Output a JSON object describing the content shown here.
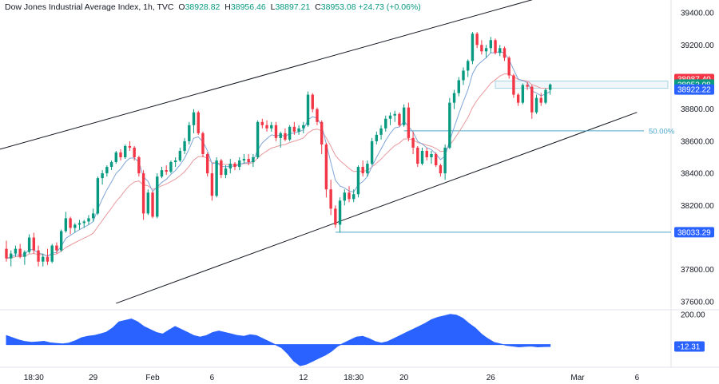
{
  "header": {
    "title": "Dow Jones Industrial Average Index, 1h, TVC",
    "o_label": "O",
    "o_value": "38928.82",
    "h_label": "H",
    "h_value": "38956.46",
    "l_label": "L",
    "l_value": "38897.21",
    "c_label": "C",
    "c_value": "38953.08",
    "change": "+24.73 (+0.06%)"
  },
  "colors": {
    "up": "#089981",
    "down": "#f23645",
    "fast_ma": "#7fa5d8",
    "slow_ma": "#e99a9e",
    "osc": "#2962ff",
    "trendline": "#131722",
    "fib": "#4aa8c9",
    "zone": "#a7d4e6"
  },
  "chart_data": {
    "type": "candlestick",
    "y_range": [
      37550,
      39460
    ],
    "y_ticks": [
      "39400.00",
      "39200.00",
      "38800.00",
      "38600.00",
      "38400.00",
      "38200.00",
      "37800.00",
      "37600.00"
    ],
    "y_tick_values": [
      39400,
      39200,
      38800,
      38600,
      38400,
      38200,
      37800,
      37600
    ],
    "x_ticks": [
      "18:30",
      "29",
      "Feb",
      "6",
      "12",
      "18:30",
      "20",
      "26",
      "Mar",
      "6"
    ],
    "x_tick_bars": [
      6,
      19,
      32,
      45,
      65,
      76,
      87,
      106,
      125,
      138
    ],
    "price_tags": [
      {
        "label": "38987.40",
        "value": 38987.4,
        "color": "#f23645"
      },
      {
        "label": "38953.08",
        "value": 38953.08,
        "color": "#089981"
      },
      {
        "label": "38922.22",
        "value": 38922.22,
        "color": "#2962ff"
      },
      {
        "label": "38033.29",
        "value": 38033.29,
        "color": "#2962ff"
      }
    ],
    "fib_label": "50.00%",
    "fib_level": 38665,
    "support_level": 38033.29,
    "channel_upper": [
      [
        0,
        38550
      ],
      [
        118,
        39505
      ]
    ],
    "channel_lower": [
      [
        24,
        37590
      ],
      [
        138,
        38780
      ]
    ],
    "zone": [
      38930,
      38975
    ],
    "osc_label": "200.00",
    "osc_value_label": "-12.31",
    "osc_range": [
      -150,
      220
    ],
    "candles": [
      [
        37930,
        37980,
        37850,
        37870
      ],
      [
        37870,
        37920,
        37820,
        37900
      ],
      [
        37900,
        37950,
        37880,
        37930
      ],
      [
        37930,
        37960,
        37870,
        37880
      ],
      [
        37880,
        37920,
        37830,
        37910
      ],
      [
        37910,
        38020,
        37900,
        38000
      ],
      [
        38000,
        38030,
        37900,
        37920
      ],
      [
        37920,
        37950,
        37820,
        37850
      ],
      [
        37850,
        37900,
        37820,
        37880
      ],
      [
        37880,
        37930,
        37830,
        37850
      ],
      [
        37850,
        37960,
        37840,
        37950
      ],
      [
        37950,
        37970,
        37900,
        37920
      ],
      [
        37920,
        38050,
        37910,
        38040
      ],
      [
        38040,
        38160,
        38030,
        38120
      ],
      [
        38120,
        38130,
        38020,
        38060
      ],
      [
        38060,
        38090,
        38030,
        38080
      ],
      [
        38080,
        38110,
        38050,
        38090
      ],
      [
        38090,
        38110,
        38060,
        38100
      ],
      [
        38100,
        38140,
        38080,
        38120
      ],
      [
        38120,
        38180,
        38100,
        38150
      ],
      [
        38150,
        38380,
        38140,
        38370
      ],
      [
        38370,
        38420,
        38330,
        38400
      ],
      [
        38400,
        38450,
        38380,
        38440
      ],
      [
        38440,
        38480,
        38420,
        38470
      ],
      [
        38470,
        38540,
        38460,
        38530
      ],
      [
        38530,
        38550,
        38480,
        38500
      ],
      [
        38500,
        38580,
        38490,
        38570
      ],
      [
        38570,
        38600,
        38540,
        38560
      ],
      [
        38560,
        38570,
        38480,
        38500
      ],
      [
        38500,
        38510,
        38380,
        38400
      ],
      [
        38400,
        38420,
        38110,
        38150
      ],
      [
        38150,
        38300,
        38140,
        38280
      ],
      [
        38280,
        38290,
        38120,
        38130
      ],
      [
        38130,
        38400,
        38120,
        38380
      ],
      [
        38380,
        38440,
        38370,
        38420
      ],
      [
        38420,
        38450,
        38390,
        38410
      ],
      [
        38410,
        38480,
        38400,
        38470
      ],
      [
        38470,
        38500,
        38440,
        38480
      ],
      [
        38480,
        38560,
        38470,
        38540
      ],
      [
        38540,
        38620,
        38520,
        38600
      ],
      [
        38600,
        38720,
        38580,
        38700
      ],
      [
        38700,
        38800,
        38650,
        38780
      ],
      [
        38780,
        38790,
        38640,
        38650
      ],
      [
        38650,
        38660,
        38500,
        38520
      ],
      [
        38520,
        38530,
        38380,
        38400
      ],
      [
        38400,
        38460,
        38230,
        38260
      ],
      [
        38260,
        38500,
        38250,
        38480
      ],
      [
        38480,
        38490,
        38370,
        38390
      ],
      [
        38390,
        38450,
        38370,
        38430
      ],
      [
        38430,
        38490,
        38400,
        38460
      ],
      [
        38460,
        38470,
        38420,
        38440
      ],
      [
        38440,
        38500,
        38420,
        38480
      ],
      [
        38480,
        38520,
        38460,
        38490
      ],
      [
        38490,
        38520,
        38450,
        38470
      ],
      [
        38470,
        38520,
        38440,
        38500
      ],
      [
        38500,
        38730,
        38490,
        38720
      ],
      [
        38720,
        38740,
        38680,
        38700
      ],
      [
        38700,
        38730,
        38660,
        38680
      ],
      [
        38680,
        38720,
        38660,
        38700
      ],
      [
        38700,
        38720,
        38600,
        38620
      ],
      [
        38620,
        38660,
        38560,
        38650
      ],
      [
        38650,
        38680,
        38600,
        38610
      ],
      [
        38610,
        38700,
        38600,
        38690
      ],
      [
        38690,
        38720,
        38640,
        38660
      ],
      [
        38660,
        38700,
        38640,
        38680
      ],
      [
        38680,
        38720,
        38650,
        38700
      ],
      [
        38700,
        38910,
        38690,
        38890
      ],
      [
        38890,
        38900,
        38780,
        38800
      ],
      [
        38800,
        38810,
        38700,
        38720
      ],
      [
        38720,
        38730,
        38520,
        38580
      ],
      [
        38580,
        38590,
        38250,
        38300
      ],
      [
        38300,
        38360,
        38140,
        38180
      ],
      [
        38180,
        38200,
        38060,
        38080
      ],
      [
        38080,
        38250,
        38030,
        38230
      ],
      [
        38230,
        38300,
        38200,
        38280
      ],
      [
        38280,
        38320,
        38220,
        38240
      ],
      [
        38240,
        38300,
        38220,
        38270
      ],
      [
        38270,
        38450,
        38250,
        38440
      ],
      [
        38440,
        38480,
        38380,
        38400
      ],
      [
        38400,
        38480,
        38380,
        38460
      ],
      [
        38460,
        38620,
        38450,
        38600
      ],
      [
        38600,
        38660,
        38580,
        38640
      ],
      [
        38640,
        38700,
        38610,
        38680
      ],
      [
        38680,
        38760,
        38660,
        38740
      ],
      [
        38740,
        38780,
        38700,
        38760
      ],
      [
        38760,
        38790,
        38720,
        38770
      ],
      [
        38770,
        38780,
        38690,
        38700
      ],
      [
        38700,
        38830,
        38690,
        38810
      ],
      [
        38810,
        38840,
        38600,
        38620
      ],
      [
        38620,
        38660,
        38520,
        38560
      ],
      [
        38560,
        38570,
        38440,
        38460
      ],
      [
        38460,
        38560,
        38450,
        38540
      ],
      [
        38540,
        38560,
        38480,
        38500
      ],
      [
        38500,
        38540,
        38460,
        38520
      ],
      [
        38520,
        38530,
        38440,
        38450
      ],
      [
        38450,
        38460,
        38380,
        38400
      ],
      [
        38400,
        38580,
        38360,
        38560
      ],
      [
        38560,
        38870,
        38550,
        38840
      ],
      [
        38840,
        38920,
        38800,
        38900
      ],
      [
        38900,
        39000,
        38880,
        38980
      ],
      [
        38980,
        39060,
        38950,
        39040
      ],
      [
        39040,
        39110,
        39000,
        39100
      ],
      [
        39100,
        39280,
        39080,
        39270
      ],
      [
        39270,
        39280,
        39180,
        39200
      ],
      [
        39200,
        39230,
        39140,
        39160
      ],
      [
        39160,
        39200,
        39120,
        39180
      ],
      [
        39180,
        39250,
        39150,
        39230
      ],
      [
        39230,
        39240,
        39140,
        39150
      ],
      [
        39150,
        39200,
        39130,
        39180
      ],
      [
        39180,
        39190,
        39100,
        39120
      ],
      [
        39120,
        39130,
        38990,
        39010
      ],
      [
        39010,
        39020,
        38870,
        38890
      ],
      [
        38890,
        38900,
        38820,
        38840
      ],
      [
        38840,
        38960,
        38830,
        38950
      ],
      [
        38950,
        38970,
        38920,
        38940
      ],
      [
        38940,
        38950,
        38740,
        38780
      ],
      [
        38780,
        38890,
        38770,
        38870
      ],
      [
        38870,
        38900,
        38820,
        38840
      ],
      [
        38840,
        38930,
        38830,
        38920
      ],
      [
        38920,
        38960,
        38890,
        38953.08
      ]
    ],
    "osc_values": [
      60,
      45,
      30,
      20,
      15,
      18,
      22,
      12,
      8,
      5,
      10,
      25,
      45,
      55,
      60,
      70,
      82,
      110,
      150,
      160,
      170,
      150,
      120,
      100,
      80,
      70,
      95,
      120,
      100,
      80,
      60,
      50,
      60,
      80,
      90,
      80,
      70,
      60,
      55,
      65,
      60,
      40,
      20,
      0,
      -20,
      -60,
      -110,
      -140,
      -130,
      -110,
      -90,
      -70,
      -45,
      -10,
      10,
      30,
      50,
      55,
      40,
      20,
      10,
      20,
      40,
      60,
      80,
      100,
      120,
      140,
      165,
      180,
      190,
      200,
      195,
      175,
      140,
      110,
      70,
      40,
      15,
      5,
      -5,
      -10,
      -15,
      -12,
      -10,
      -15,
      -13,
      -12.31
    ]
  }
}
